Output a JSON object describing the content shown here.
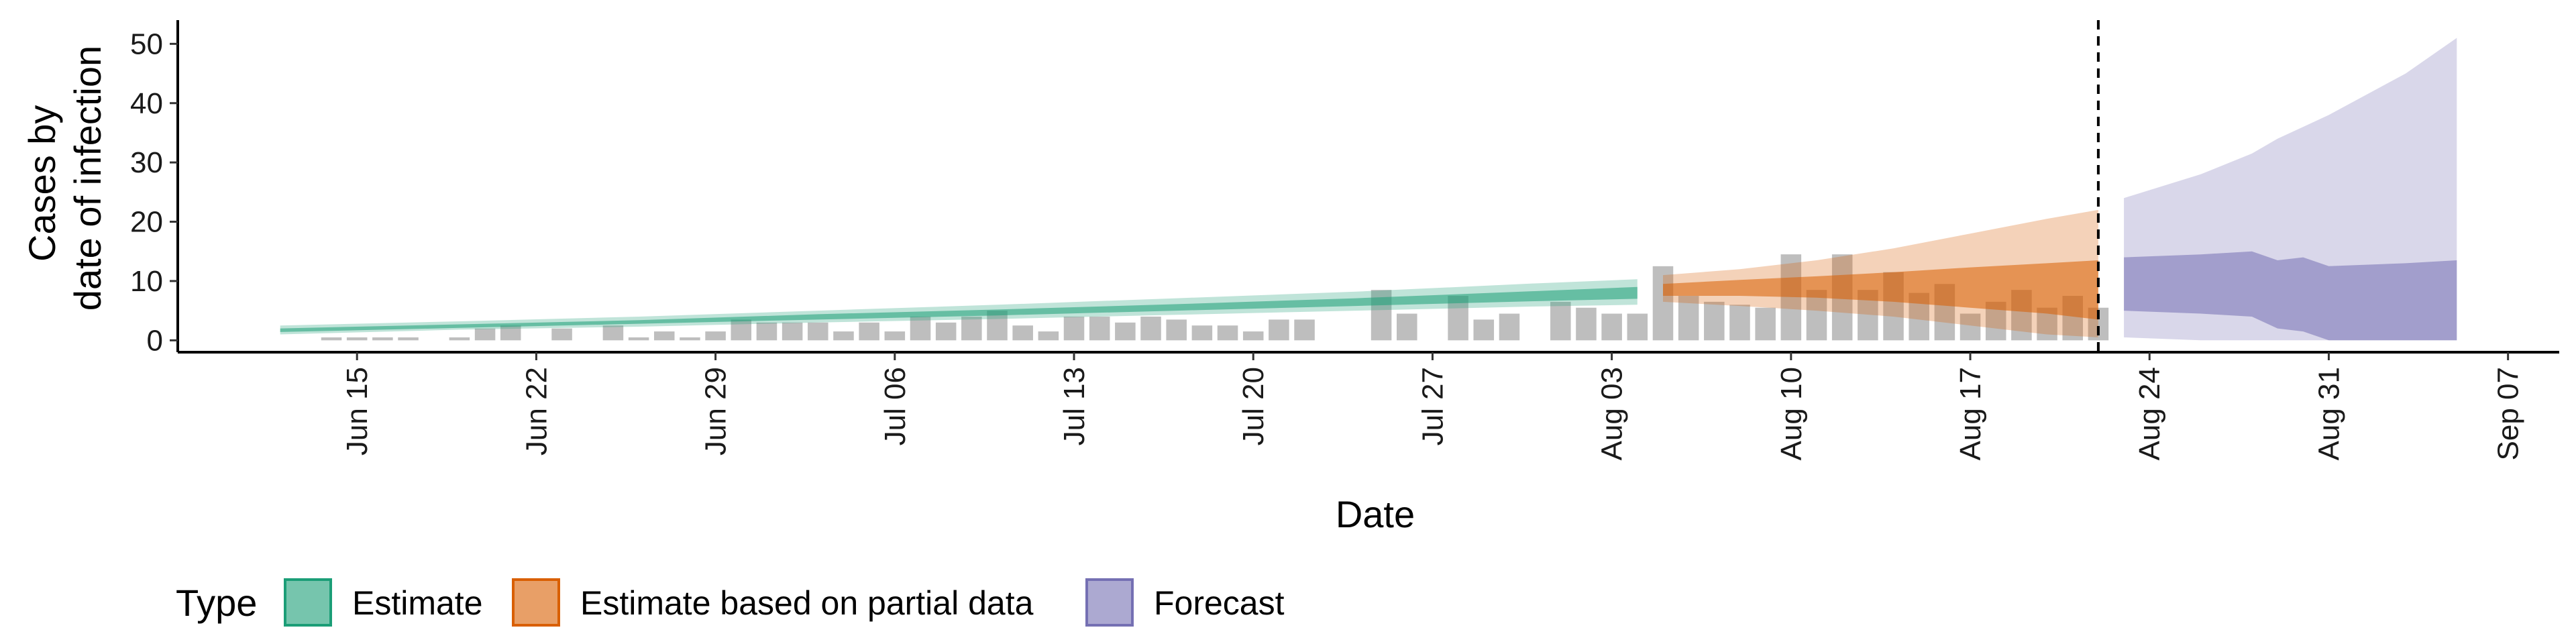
{
  "chart_data": {
    "type": "area",
    "xlabel": "Date",
    "ylabel": [
      "Cases by",
      "date of infection"
    ],
    "ylim": [
      -2,
      54
    ],
    "yticks": [
      0,
      10,
      20,
      30,
      40,
      50
    ],
    "xlim": [
      "2020-06-08",
      "2020-09-09"
    ],
    "xticks": [
      {
        "date": "2020-06-15",
        "label": "Jun 15"
      },
      {
        "date": "2020-06-22",
        "label": "Jun 22"
      },
      {
        "date": "2020-06-29",
        "label": "Jun 29"
      },
      {
        "date": "2020-07-06",
        "label": "Jul 06"
      },
      {
        "date": "2020-07-13",
        "label": "Jul 13"
      },
      {
        "date": "2020-07-20",
        "label": "Jul 20"
      },
      {
        "date": "2020-07-27",
        "label": "Jul 27"
      },
      {
        "date": "2020-08-03",
        "label": "Aug 03"
      },
      {
        "date": "2020-08-10",
        "label": "Aug 10"
      },
      {
        "date": "2020-08-17",
        "label": "Aug 17"
      },
      {
        "date": "2020-08-24",
        "label": "Aug 24"
      },
      {
        "date": "2020-08-31",
        "label": "Aug 31"
      },
      {
        "date": "2020-09-07",
        "label": "Sep 07"
      }
    ],
    "observed_cases": {
      "dates": [
        "2020-06-14",
        "2020-06-15",
        "2020-06-16",
        "2020-06-17",
        "2020-06-18",
        "2020-06-19",
        "2020-06-20",
        "2020-06-21",
        "2020-06-22",
        "2020-06-23",
        "2020-06-24",
        "2020-06-25",
        "2020-06-26",
        "2020-06-27",
        "2020-06-28",
        "2020-06-29",
        "2020-06-30",
        "2020-07-01",
        "2020-07-02",
        "2020-07-03",
        "2020-07-04",
        "2020-07-05",
        "2020-07-06",
        "2020-07-07",
        "2020-07-08",
        "2020-07-09",
        "2020-07-10",
        "2020-07-11",
        "2020-07-12",
        "2020-07-13",
        "2020-07-14",
        "2020-07-15",
        "2020-07-16",
        "2020-07-17",
        "2020-07-18",
        "2020-07-19",
        "2020-07-20",
        "2020-07-21",
        "2020-07-22",
        "2020-07-23",
        "2020-07-24",
        "2020-07-25",
        "2020-07-26",
        "2020-07-27",
        "2020-07-28",
        "2020-07-29",
        "2020-07-30",
        "2020-07-31",
        "2020-08-01",
        "2020-08-02",
        "2020-08-03",
        "2020-08-04",
        "2020-08-05",
        "2020-08-06",
        "2020-08-07",
        "2020-08-08",
        "2020-08-09",
        "2020-08-10",
        "2020-08-11",
        "2020-08-12",
        "2020-08-13",
        "2020-08-14",
        "2020-08-15",
        "2020-08-16",
        "2020-08-17",
        "2020-08-18",
        "2020-08-19",
        "2020-08-20",
        "2020-08-21",
        "2020-08-22"
      ],
      "values": [
        0.5,
        0.5,
        0.5,
        0.5,
        0,
        0.5,
        2,
        2.5,
        0,
        2,
        0,
        2.5,
        0.5,
        1.5,
        0.5,
        1.5,
        3.5,
        3,
        3,
        3,
        1.5,
        3,
        1.5,
        4,
        3,
        4,
        5,
        2.5,
        1.5,
        4,
        4,
        3,
        4,
        3.5,
        2.5,
        2.5,
        1.5,
        3.5,
        3.5,
        0,
        0,
        8.5,
        4.5,
        0,
        7.5,
        3.5,
        4.5,
        0,
        6.5,
        5.5,
        4.5,
        4.5,
        12.5,
        7.5,
        6.5,
        6,
        5.5,
        14.5,
        8.5,
        14.5,
        8.5,
        11.5,
        8,
        9.5,
        4.5,
        6.5,
        8.5,
        5.5,
        7.5,
        5.5
      ]
    },
    "series": [
      {
        "name": "Estimate",
        "color": "#1B9E77",
        "dates": [
          "2020-06-12",
          "2020-06-19",
          "2020-06-26",
          "2020-07-03",
          "2020-07-10",
          "2020-07-17",
          "2020-07-24",
          "2020-07-31",
          "2020-08-04"
        ],
        "outer_upper": [
          2.5,
          3.2,
          4.0,
          5.0,
          6.0,
          7.1,
          8.2,
          9.6,
          10.3
        ],
        "outer_lower": [
          1.0,
          1.8,
          2.3,
          3.0,
          3.6,
          4.3,
          5.0,
          5.7,
          6.0
        ],
        "inner_upper": [
          2.0,
          2.7,
          3.4,
          4.4,
          5.2,
          6.1,
          7.1,
          8.3,
          9.0
        ],
        "inner_lower": [
          1.4,
          2.1,
          2.8,
          3.5,
          4.2,
          5.0,
          5.8,
          6.6,
          7.0
        ]
      },
      {
        "name": "Estimate based on partial data",
        "color": "#D95F02",
        "dates": [
          "2020-08-05",
          "2020-08-08",
          "2020-08-11",
          "2020-08-14",
          "2020-08-17",
          "2020-08-20",
          "2020-08-22"
        ],
        "outer_upper": [
          11.0,
          12.0,
          13.5,
          15.5,
          18.0,
          20.5,
          22.0
        ],
        "outer_lower": [
          6.5,
          5.8,
          5.0,
          4.0,
          2.5,
          1.0,
          0.5
        ],
        "inner_upper": [
          9.5,
          10.2,
          10.8,
          11.5,
          12.3,
          13.0,
          13.5
        ],
        "inner_lower": [
          7.5,
          7.5,
          7.2,
          6.5,
          5.5,
          4.5,
          3.5
        ]
      },
      {
        "name": "Forecast",
        "color": "#7570B3",
        "dates": [
          "2020-08-23",
          "2020-08-26",
          "2020-08-28",
          "2020-08-29",
          "2020-08-30",
          "2020-08-31",
          "2020-09-03",
          "2020-09-05"
        ],
        "outer_upper": [
          24,
          28,
          31.5,
          34,
          36,
          38,
          45,
          51
        ],
        "outer_lower": [
          0.5,
          0,
          0,
          0,
          0,
          0,
          0,
          0
        ],
        "inner_upper": [
          14,
          14.5,
          15,
          13.5,
          14,
          12.5,
          13,
          13.5
        ],
        "inner_lower": [
          5,
          4.5,
          4,
          2,
          1.5,
          0,
          0,
          0
        ]
      }
    ],
    "forecast_start": "2020-08-22",
    "grid": false,
    "legend": {
      "title": "Type",
      "position": "bottom",
      "items": [
        {
          "label": "Estimate",
          "color": "#1B9E77"
        },
        {
          "label": "Estimate based on partial data",
          "color": "#D95F02"
        },
        {
          "label": "Forecast",
          "color": "#7570B3"
        }
      ]
    }
  }
}
